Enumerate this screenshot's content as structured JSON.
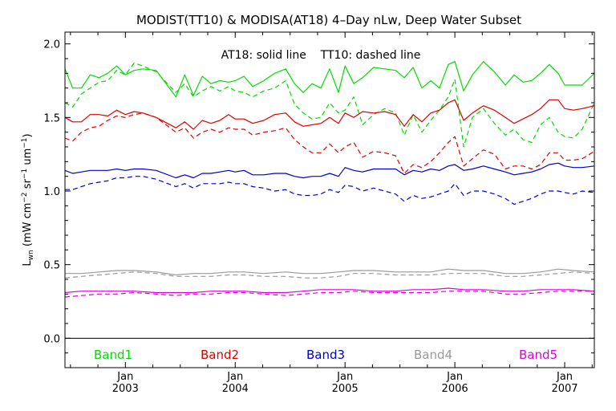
{
  "title": "MODIST(TT10) & MODISA(AT18) 4–Day nLw, Deep Water Subset",
  "annotation": "AT18: solid line    TT10: dashed line",
  "chart_data": {
    "type": "line",
    "title": "MODIST(TT10) & MODISA(AT18) 4–Day nLw, Deep Water Subset",
    "ylabel": "Lwn (mW cm−2 sr−1 um−1)",
    "ylabel_parts": {
      "base": "L",
      "base_sub": "wn",
      "open": " (mW cm",
      "exp1": "−2",
      "mid": " sr",
      "exp2": "−1",
      "mid2": " um",
      "exp3": "−1",
      "close": ")"
    },
    "xlabel": "",
    "xlim": [
      2002.45,
      2007.27
    ],
    "ylim": [
      -0.2,
      2.08
    ],
    "yticks": [
      0.0,
      0.5,
      1.0,
      1.5,
      2.0
    ],
    "ytick_labels": [
      "0.0",
      "0.5",
      "1.0",
      "1.5",
      "2.0"
    ],
    "xticks": [
      {
        "x": 2003.0,
        "month": "Jan",
        "year": "2003"
      },
      {
        "x": 2004.0,
        "month": "Jan",
        "year": "2004"
      },
      {
        "x": 2005.0,
        "month": "Jan",
        "year": "2005"
      },
      {
        "x": 2006.0,
        "month": "Jan",
        "year": "2006"
      },
      {
        "x": 2007.0,
        "month": "Jan",
        "year": "2007"
      }
    ],
    "zero_line": 0.0,
    "legend_placement": "bottom",
    "grid": false,
    "series": [
      {
        "name": "Band1",
        "band": "Band1",
        "sensor": "AT18",
        "style": "solid",
        "color": "#00dd00",
        "x": [
          2002.45,
          2002.52,
          2002.6,
          2002.68,
          2002.76,
          2002.84,
          2002.92,
          2003.0,
          2003.08,
          2003.16,
          2003.28,
          2003.46,
          2003.54,
          2003.62,
          2003.7,
          2003.78,
          2003.86,
          2003.94,
          2004.0,
          2004.08,
          2004.16,
          2004.26,
          2004.36,
          2004.46,
          2004.54,
          2004.62,
          2004.7,
          2004.78,
          2004.86,
          2004.94,
          2005.0,
          2005.08,
          2005.16,
          2005.26,
          2005.36,
          2005.46,
          2005.54,
          2005.62,
          2005.7,
          2005.78,
          2005.86,
          2005.94,
          2006.0,
          2006.08,
          2006.16,
          2006.26,
          2006.36,
          2006.46,
          2006.54,
          2006.62,
          2006.7,
          2006.78,
          2006.86,
          2006.94,
          2007.0,
          2007.08,
          2007.16,
          2007.27
        ],
        "y": [
          1.83,
          1.7,
          1.7,
          1.79,
          1.77,
          1.8,
          1.85,
          1.79,
          1.82,
          1.83,
          1.82,
          1.64,
          1.79,
          1.65,
          1.78,
          1.73,
          1.75,
          1.74,
          1.75,
          1.78,
          1.71,
          1.75,
          1.8,
          1.83,
          1.73,
          1.67,
          1.73,
          1.7,
          1.83,
          1.67,
          1.85,
          1.73,
          1.77,
          1.84,
          1.83,
          1.82,
          1.77,
          1.84,
          1.7,
          1.75,
          1.7,
          1.86,
          1.88,
          1.68,
          1.79,
          1.88,
          1.81,
          1.72,
          1.79,
          1.74,
          1.75,
          1.8,
          1.86,
          1.8,
          1.72,
          1.72,
          1.72,
          1.8
        ]
      },
      {
        "name": "Band1",
        "band": "Band1",
        "sensor": "TT10",
        "style": "dashed",
        "color": "#00dd00",
        "x": [
          2002.45,
          2002.52,
          2002.6,
          2002.68,
          2002.76,
          2002.84,
          2002.92,
          2003.0,
          2003.08,
          2003.16,
          2003.28,
          2003.46,
          2003.54,
          2003.62,
          2003.7,
          2003.78,
          2003.86,
          2003.94,
          2004.0,
          2004.08,
          2004.16,
          2004.26,
          2004.36,
          2004.46,
          2004.54,
          2004.62,
          2004.7,
          2004.78,
          2004.86,
          2004.94,
          2005.0,
          2005.08,
          2005.16,
          2005.26,
          2005.36,
          2005.46,
          2005.54,
          2005.62,
          2005.7,
          2005.78,
          2005.86,
          2005.94,
          2006.0,
          2006.08,
          2006.16,
          2006.26,
          2006.36,
          2006.46,
          2006.54,
          2006.62,
          2006.7,
          2006.78,
          2006.86,
          2006.94,
          2007.0,
          2007.08,
          2007.16,
          2007.27
        ],
        "y": [
          1.6,
          1.57,
          1.66,
          1.7,
          1.74,
          1.75,
          1.82,
          1.79,
          1.87,
          1.85,
          1.81,
          1.67,
          1.73,
          1.64,
          1.68,
          1.71,
          1.68,
          1.71,
          1.68,
          1.67,
          1.64,
          1.68,
          1.7,
          1.75,
          1.59,
          1.53,
          1.49,
          1.5,
          1.6,
          1.53,
          1.55,
          1.64,
          1.45,
          1.52,
          1.56,
          1.53,
          1.38,
          1.52,
          1.4,
          1.48,
          1.55,
          1.64,
          1.76,
          1.3,
          1.5,
          1.56,
          1.46,
          1.38,
          1.42,
          1.35,
          1.33,
          1.45,
          1.5,
          1.4,
          1.37,
          1.36,
          1.42,
          1.6
        ]
      },
      {
        "name": "Band2",
        "band": "Band2",
        "sensor": "AT18",
        "style": "solid",
        "color": "#dd0000",
        "x": [
          2002.45,
          2002.52,
          2002.6,
          2002.68,
          2002.76,
          2002.84,
          2002.92,
          2003.0,
          2003.08,
          2003.16,
          2003.28,
          2003.46,
          2003.54,
          2003.62,
          2003.7,
          2003.78,
          2003.86,
          2003.94,
          2004.0,
          2004.08,
          2004.16,
          2004.26,
          2004.36,
          2004.46,
          2004.54,
          2004.62,
          2004.7,
          2004.78,
          2004.86,
          2004.94,
          2005.0,
          2005.08,
          2005.16,
          2005.26,
          2005.36,
          2005.46,
          2005.54,
          2005.62,
          2005.7,
          2005.78,
          2005.86,
          2005.94,
          2006.0,
          2006.08,
          2006.16,
          2006.26,
          2006.36,
          2006.46,
          2006.54,
          2006.62,
          2006.7,
          2006.78,
          2006.86,
          2006.94,
          2007.0,
          2007.08,
          2007.16,
          2007.27
        ],
        "y": [
          1.5,
          1.47,
          1.47,
          1.52,
          1.52,
          1.51,
          1.55,
          1.52,
          1.54,
          1.53,
          1.5,
          1.43,
          1.47,
          1.42,
          1.48,
          1.46,
          1.48,
          1.52,
          1.49,
          1.49,
          1.46,
          1.48,
          1.52,
          1.53,
          1.47,
          1.44,
          1.45,
          1.46,
          1.5,
          1.46,
          1.53,
          1.5,
          1.54,
          1.53,
          1.54,
          1.52,
          1.44,
          1.52,
          1.47,
          1.53,
          1.55,
          1.6,
          1.62,
          1.48,
          1.53,
          1.58,
          1.55,
          1.5,
          1.46,
          1.49,
          1.52,
          1.56,
          1.62,
          1.62,
          1.56,
          1.55,
          1.56,
          1.58
        ]
      },
      {
        "name": "Band2",
        "band": "Band2",
        "sensor": "TT10",
        "style": "dashed",
        "color": "#dd0000",
        "x": [
          2002.45,
          2002.52,
          2002.6,
          2002.68,
          2002.76,
          2002.84,
          2002.92,
          2003.0,
          2003.08,
          2003.16,
          2003.28,
          2003.46,
          2003.54,
          2003.62,
          2003.7,
          2003.78,
          2003.86,
          2003.94,
          2004.0,
          2004.08,
          2004.16,
          2004.26,
          2004.36,
          2004.46,
          2004.54,
          2004.62,
          2004.7,
          2004.78,
          2004.86,
          2004.94,
          2005.0,
          2005.08,
          2005.16,
          2005.26,
          2005.36,
          2005.46,
          2005.54,
          2005.62,
          2005.7,
          2005.78,
          2005.86,
          2005.94,
          2006.0,
          2006.08,
          2006.16,
          2006.26,
          2006.36,
          2006.46,
          2006.54,
          2006.62,
          2006.7,
          2006.78,
          2006.86,
          2006.94,
          2007.0,
          2007.08,
          2007.16,
          2007.27
        ],
        "y": [
          1.36,
          1.34,
          1.4,
          1.43,
          1.44,
          1.48,
          1.51,
          1.5,
          1.52,
          1.53,
          1.5,
          1.4,
          1.43,
          1.36,
          1.4,
          1.42,
          1.4,
          1.43,
          1.42,
          1.42,
          1.38,
          1.4,
          1.41,
          1.43,
          1.35,
          1.3,
          1.26,
          1.26,
          1.32,
          1.26,
          1.3,
          1.33,
          1.23,
          1.27,
          1.26,
          1.24,
          1.12,
          1.18,
          1.16,
          1.2,
          1.26,
          1.33,
          1.37,
          1.17,
          1.22,
          1.28,
          1.25,
          1.15,
          1.17,
          1.17,
          1.15,
          1.18,
          1.26,
          1.26,
          1.21,
          1.21,
          1.22,
          1.27
        ]
      },
      {
        "name": "Band3",
        "band": "Band3",
        "sensor": "AT18",
        "style": "solid",
        "color": "#0000cc",
        "x": [
          2002.45,
          2002.52,
          2002.6,
          2002.68,
          2002.76,
          2002.84,
          2002.92,
          2003.0,
          2003.08,
          2003.16,
          2003.28,
          2003.46,
          2003.54,
          2003.62,
          2003.7,
          2003.78,
          2003.86,
          2003.94,
          2004.0,
          2004.08,
          2004.16,
          2004.26,
          2004.36,
          2004.46,
          2004.54,
          2004.62,
          2004.7,
          2004.78,
          2004.86,
          2004.94,
          2005.0,
          2005.08,
          2005.16,
          2005.26,
          2005.36,
          2005.46,
          2005.54,
          2005.62,
          2005.7,
          2005.78,
          2005.86,
          2005.94,
          2006.0,
          2006.08,
          2006.16,
          2006.26,
          2006.36,
          2006.46,
          2006.54,
          2006.62,
          2006.7,
          2006.78,
          2006.86,
          2006.94,
          2007.0,
          2007.08,
          2007.16,
          2007.27
        ],
        "y": [
          1.14,
          1.12,
          1.13,
          1.14,
          1.14,
          1.14,
          1.15,
          1.14,
          1.15,
          1.15,
          1.14,
          1.09,
          1.11,
          1.09,
          1.12,
          1.12,
          1.13,
          1.14,
          1.13,
          1.14,
          1.11,
          1.11,
          1.12,
          1.12,
          1.1,
          1.09,
          1.1,
          1.1,
          1.12,
          1.1,
          1.16,
          1.14,
          1.13,
          1.15,
          1.15,
          1.15,
          1.11,
          1.14,
          1.13,
          1.15,
          1.14,
          1.17,
          1.18,
          1.14,
          1.15,
          1.17,
          1.15,
          1.13,
          1.11,
          1.12,
          1.13,
          1.15,
          1.18,
          1.19,
          1.17,
          1.16,
          1.16,
          1.17
        ]
      },
      {
        "name": "Band3",
        "band": "Band3",
        "sensor": "TT10",
        "style": "dashed",
        "color": "#0000cc",
        "x": [
          2002.45,
          2002.52,
          2002.6,
          2002.68,
          2002.76,
          2002.84,
          2002.92,
          2003.0,
          2003.08,
          2003.16,
          2003.28,
          2003.46,
          2003.54,
          2003.62,
          2003.7,
          2003.78,
          2003.86,
          2003.94,
          2004.0,
          2004.08,
          2004.16,
          2004.26,
          2004.36,
          2004.46,
          2004.54,
          2004.62,
          2004.7,
          2004.78,
          2004.86,
          2004.94,
          2005.0,
          2005.08,
          2005.16,
          2005.26,
          2005.36,
          2005.46,
          2005.54,
          2005.62,
          2005.7,
          2005.78,
          2005.86,
          2005.94,
          2006.0,
          2006.08,
          2006.16,
          2006.26,
          2006.36,
          2006.46,
          2006.54,
          2006.62,
          2006.7,
          2006.78,
          2006.86,
          2006.94,
          2007.0,
          2007.08,
          2007.16,
          2007.27
        ],
        "y": [
          1.01,
          1.01,
          1.03,
          1.05,
          1.06,
          1.07,
          1.09,
          1.09,
          1.1,
          1.1,
          1.08,
          1.03,
          1.05,
          1.02,
          1.05,
          1.05,
          1.05,
          1.06,
          1.05,
          1.05,
          1.03,
          1.02,
          1.0,
          1.01,
          0.98,
          0.97,
          0.97,
          0.98,
          1.01,
          0.99,
          1.04,
          1.03,
          1.0,
          1.02,
          1.0,
          0.98,
          0.93,
          0.97,
          0.95,
          0.96,
          0.98,
          1.0,
          1.05,
          0.97,
          1.0,
          1.0,
          0.98,
          0.95,
          0.91,
          0.93,
          0.95,
          0.98,
          1.0,
          1.0,
          0.99,
          0.98,
          1.0,
          0.99
        ]
      },
      {
        "name": "Band4",
        "band": "Band4",
        "sensor": "AT18",
        "style": "solid",
        "color": "#999999",
        "x": [
          2002.45,
          2002.6,
          2002.76,
          2002.92,
          2003.08,
          2003.28,
          2003.46,
          2003.62,
          2003.78,
          2003.94,
          2004.08,
          2004.26,
          2004.46,
          2004.62,
          2004.78,
          2004.94,
          2005.08,
          2005.26,
          2005.46,
          2005.62,
          2005.78,
          2005.94,
          2006.08,
          2006.26,
          2006.46,
          2006.62,
          2006.78,
          2006.94,
          2007.08,
          2007.27
        ],
        "y": [
          0.44,
          0.44,
          0.45,
          0.46,
          0.46,
          0.45,
          0.43,
          0.44,
          0.44,
          0.45,
          0.45,
          0.44,
          0.45,
          0.44,
          0.44,
          0.45,
          0.46,
          0.46,
          0.45,
          0.45,
          0.45,
          0.47,
          0.46,
          0.46,
          0.44,
          0.44,
          0.45,
          0.47,
          0.46,
          0.45
        ]
      },
      {
        "name": "Band4",
        "band": "Band4",
        "sensor": "TT10",
        "style": "dashed",
        "color": "#999999",
        "x": [
          2002.45,
          2002.6,
          2002.76,
          2002.92,
          2003.08,
          2003.28,
          2003.46,
          2003.62,
          2003.78,
          2003.94,
          2004.08,
          2004.26,
          2004.46,
          2004.62,
          2004.78,
          2004.94,
          2005.08,
          2005.26,
          2005.46,
          2005.62,
          2005.78,
          2005.94,
          2006.08,
          2006.26,
          2006.46,
          2006.62,
          2006.78,
          2006.94,
          2007.08,
          2007.27
        ],
        "y": [
          0.41,
          0.42,
          0.43,
          0.44,
          0.45,
          0.44,
          0.42,
          0.42,
          0.42,
          0.43,
          0.43,
          0.42,
          0.42,
          0.41,
          0.41,
          0.42,
          0.44,
          0.44,
          0.43,
          0.43,
          0.43,
          0.44,
          0.44,
          0.44,
          0.42,
          0.42,
          0.43,
          0.44,
          0.45,
          0.44
        ]
      },
      {
        "name": "Band5",
        "band": "Band5",
        "sensor": "AT18",
        "style": "solid",
        "color": "#dd00dd",
        "x": [
          2002.45,
          2002.6,
          2002.76,
          2002.92,
          2003.08,
          2003.28,
          2003.46,
          2003.62,
          2003.78,
          2003.94,
          2004.08,
          2004.26,
          2004.46,
          2004.62,
          2004.78,
          2004.94,
          2005.08,
          2005.26,
          2005.46,
          2005.62,
          2005.78,
          2005.94,
          2006.08,
          2006.26,
          2006.46,
          2006.62,
          2006.78,
          2006.94,
          2007.08,
          2007.27
        ],
        "y": [
          0.31,
          0.32,
          0.32,
          0.32,
          0.32,
          0.31,
          0.31,
          0.31,
          0.32,
          0.32,
          0.32,
          0.31,
          0.31,
          0.32,
          0.33,
          0.33,
          0.33,
          0.32,
          0.32,
          0.33,
          0.33,
          0.34,
          0.33,
          0.33,
          0.32,
          0.32,
          0.33,
          0.33,
          0.33,
          0.32
        ]
      },
      {
        "name": "Band5",
        "band": "Band5",
        "sensor": "TT10",
        "style": "dashed",
        "color": "#dd00dd",
        "x": [
          2002.45,
          2002.6,
          2002.76,
          2002.92,
          2003.08,
          2003.28,
          2003.46,
          2003.62,
          2003.78,
          2003.94,
          2004.08,
          2004.26,
          2004.46,
          2004.62,
          2004.78,
          2004.94,
          2005.08,
          2005.26,
          2005.46,
          2005.62,
          2005.78,
          2005.94,
          2006.08,
          2006.26,
          2006.46,
          2006.62,
          2006.78,
          2006.94,
          2007.08,
          2007.27
        ],
        "y": [
          0.28,
          0.29,
          0.3,
          0.3,
          0.31,
          0.3,
          0.29,
          0.3,
          0.3,
          0.31,
          0.31,
          0.3,
          0.29,
          0.3,
          0.31,
          0.31,
          0.32,
          0.31,
          0.31,
          0.31,
          0.31,
          0.32,
          0.32,
          0.32,
          0.3,
          0.3,
          0.31,
          0.32,
          0.32,
          0.32
        ]
      }
    ],
    "legend": [
      {
        "label": "Band1",
        "color": "#00dd00"
      },
      {
        "label": "Band2",
        "color": "#dd0000"
      },
      {
        "label": "Band3",
        "color": "#0000cc"
      },
      {
        "label": "Band4",
        "color": "#999999"
      },
      {
        "label": "Band5",
        "color": "#dd00dd"
      }
    ]
  }
}
